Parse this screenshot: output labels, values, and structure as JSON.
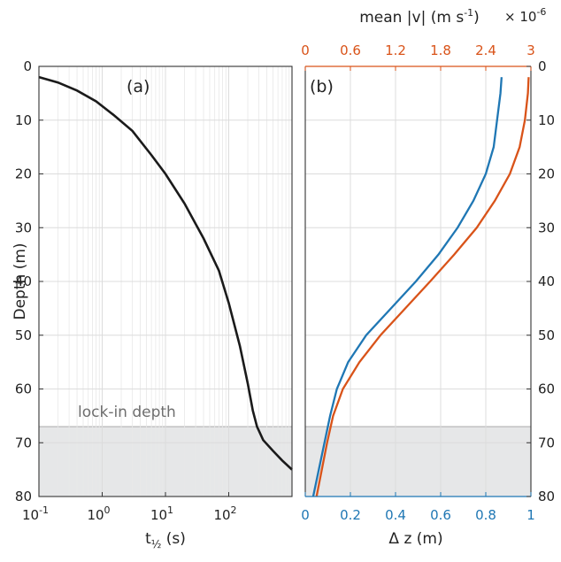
{
  "chart_data": [
    {
      "panel_label": "(a)",
      "type": "line",
      "xscale": "log",
      "xlabel": "t½ (s)",
      "ylabel": "Depth (m)",
      "xlim": [
        0.1,
        1000
      ],
      "ylim": [
        0,
        80
      ],
      "x_ticks": [
        {
          "base": "10",
          "exp": "-1"
        },
        {
          "base": "10",
          "exp": "0"
        },
        {
          "base": "10",
          "exp": "1"
        },
        {
          "base": "10",
          "exp": "2"
        }
      ],
      "y_ticks": [
        "0",
        "10",
        "20",
        "30",
        "40",
        "50",
        "60",
        "70",
        "80"
      ],
      "grid": "on",
      "shade_from_depth": 67,
      "annotation": "lock-in depth",
      "series": [
        {
          "color": "#1a1a1a",
          "x": [
            0.1,
            0.2,
            0.4,
            0.8,
            1.5,
            3,
            6,
            10,
            20,
            40,
            70,
            100,
            150,
            200,
            240,
            280,
            350,
            500,
            700,
            1000
          ],
          "y": [
            2,
            3,
            4.5,
            6.5,
            9,
            12,
            16.5,
            20,
            25.5,
            32,
            38,
            44,
            52,
            59,
            64,
            67,
            69.5,
            71.5,
            73.3,
            75
          ]
        }
      ]
    },
    {
      "panel_label": "(b)",
      "type": "line",
      "xlabel": "Δ z (m)",
      "x2label": "mean |v| (m s⁻¹)",
      "x2_multiplier": "× 10⁻⁶",
      "ylim": [
        0,
        80
      ],
      "xlim": [
        0,
        1
      ],
      "x2lim": [
        0,
        3
      ],
      "x_ticks": [
        "0",
        "0.2",
        "0.4",
        "0.6",
        "0.8",
        "1"
      ],
      "x2_ticks": [
        "0",
        "0.6",
        "1.2",
        "1.8",
        "2.4",
        "3"
      ],
      "y_ticks": [
        "0",
        "10",
        "20",
        "30",
        "40",
        "50",
        "60",
        "70",
        "80"
      ],
      "grid": "on",
      "shade_from_depth": 67,
      "colors": {
        "bottom_axis": "#1f77b4",
        "top_axis": "#d95319"
      },
      "series": [
        {
          "axis": "bottom",
          "color": "#1f77b4",
          "x": [
            0.87,
            0.865,
            0.85,
            0.835,
            0.8,
            0.745,
            0.675,
            0.59,
            0.49,
            0.38,
            0.27,
            0.19,
            0.14,
            0.11,
            0.085,
            0.06,
            0.035
          ],
          "y": [
            2,
            5,
            10,
            15,
            20,
            25,
            30,
            35,
            40,
            45,
            50,
            55,
            60,
            65,
            70,
            75,
            80
          ]
        },
        {
          "axis": "top",
          "color": "#d95319",
          "x": [
            2.97,
            2.96,
            2.92,
            2.85,
            2.72,
            2.52,
            2.28,
            1.98,
            1.66,
            1.33,
            1.0,
            0.72,
            0.5,
            0.37,
            0.29,
            0.22,
            0.15
          ],
          "y": [
            2,
            5,
            10,
            15,
            20,
            25,
            30,
            35,
            40,
            45,
            50,
            55,
            60,
            65,
            70,
            75,
            80
          ]
        }
      ]
    }
  ]
}
